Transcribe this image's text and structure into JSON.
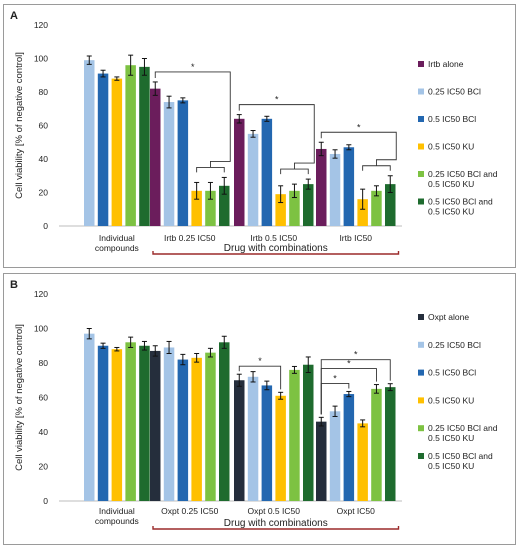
{
  "chart_data": [
    {
      "type": "bar",
      "panel_label": "A",
      "ylabel": "Cell viability [% of negative control]",
      "ylim": [
        0,
        120
      ],
      "yticks": [
        0,
        20,
        40,
        60,
        80,
        100,
        120
      ],
      "grid": false,
      "legend_position": "right",
      "bracket_label": "Drug with combinations",
      "groups": [
        {
          "label": "Individual\ncompounds",
          "lines": [
            "Individual",
            "compounds"
          ]
        },
        {
          "label": "Irtb 0.25 IC50",
          "lines": [
            "Irtb 0.25 IC50"
          ]
        },
        {
          "label": "Irtb 0.5 IC50",
          "lines": [
            "Irtb 0.5 IC50"
          ]
        },
        {
          "label": "Irtb IC50",
          "lines": [
            "Irtb IC50"
          ]
        }
      ],
      "series": [
        {
          "name": "Irtb alone",
          "color": "#6b1d5c",
          "values": [
            null,
            82,
            64,
            46
          ],
          "errors": [
            null,
            4,
            2.5,
            4
          ]
        },
        {
          "name": "0.25 IC50 BCl",
          "color": "#a4c4e6",
          "values": [
            99,
            74,
            55,
            43
          ],
          "errors": [
            2.5,
            3.5,
            2,
            2.5
          ]
        },
        {
          "name": "0.5 IC50 BCl",
          "color": "#2367b0",
          "values": [
            91,
            75,
            64,
            47
          ],
          "errors": [
            2,
            1.5,
            1.5,
            1.5
          ]
        },
        {
          "name": "0.5 IC50 KU",
          "color": "#ffc000",
          "values": [
            88,
            21,
            19,
            16
          ],
          "errors": [
            1,
            5,
            5,
            6
          ]
        },
        {
          "name": "0.25 IC50 BCl and 0.5 IC50 KU",
          "color": "#7dc242",
          "values": [
            96,
            21,
            21,
            21
          ],
          "errors": [
            6,
            5,
            4,
            3
          ]
        },
        {
          "name": "0.5 IC50 BCl and 0.5 IC50 KU",
          "color": "#1e6b2e",
          "values": [
            95,
            24,
            25,
            25
          ],
          "errors": [
            5,
            5,
            3,
            5
          ]
        }
      ],
      "legend_entries": [
        {
          "lines": [
            "Irtb alone"
          ],
          "color": "#6b1d5c"
        },
        {
          "lines": [
            "0.25 IC50 BCl"
          ],
          "color": "#a4c4e6"
        },
        {
          "lines": [
            "0.5 IC50 BCl"
          ],
          "color": "#2367b0"
        },
        {
          "lines": [
            "0.5 IC50 KU"
          ],
          "color": "#ffc000"
        },
        {
          "lines": [
            "0.25 IC50 BCl and",
            "0.5 IC50 KU"
          ],
          "color": "#7dc242"
        },
        {
          "lines": [
            "0.5 IC50 BCl and",
            "0.5 IC50 KU"
          ],
          "color": "#1e6b2e"
        }
      ],
      "annotations": [
        {
          "text": "*",
          "group": 1,
          "type": "bracket",
          "from_series": 0,
          "to_series": [
            3,
            5
          ]
        },
        {
          "text": "*",
          "group": 2,
          "type": "bracket",
          "from_series": 0,
          "to_series": [
            3,
            5
          ]
        },
        {
          "text": "*",
          "group": 3,
          "type": "bracket",
          "from_series": 0,
          "to_series": [
            3,
            5
          ]
        }
      ]
    },
    {
      "type": "bar",
      "panel_label": "B",
      "ylabel": "Cell viability [% of negative control]",
      "ylim": [
        0,
        120
      ],
      "yticks": [
        0,
        20,
        40,
        60,
        80,
        100,
        120
      ],
      "grid": false,
      "legend_position": "right",
      "bracket_label": "Drug with combinations",
      "groups": [
        {
          "label": "Individual\ncompounds",
          "lines": [
            "Individual",
            "compounds"
          ]
        },
        {
          "label": "Oxpt 0.25 IC50",
          "lines": [
            "Oxpt 0.25 IC50"
          ]
        },
        {
          "label": "Oxpt 0.5 IC50",
          "lines": [
            "Oxpt 0.5 IC50"
          ]
        },
        {
          "label": "Oxpt IC50",
          "lines": [
            "Oxpt IC50"
          ]
        }
      ],
      "series": [
        {
          "name": "Oxpt alone",
          "color": "#252e3c",
          "values": [
            null,
            87,
            70,
            46
          ],
          "errors": [
            null,
            3,
            3.5,
            2.5
          ]
        },
        {
          "name": "0.25 IC50 BCl",
          "color": "#a4c4e6",
          "values": [
            97,
            89,
            72,
            52
          ],
          "errors": [
            3,
            3.5,
            3,
            3
          ]
        },
        {
          "name": "0.5 IC50 BCl",
          "color": "#2367b0",
          "values": [
            90,
            82,
            67,
            62
          ],
          "errors": [
            1.5,
            3,
            2.5,
            1.5
          ]
        },
        {
          "name": "0.5 IC50 KU",
          "color": "#ffc000",
          "values": [
            88,
            83,
            61,
            45
          ],
          "errors": [
            1,
            2.5,
            2,
            2
          ]
        },
        {
          "name": "0.25 IC50 BCl and 0.5 IC50 KU",
          "color": "#7dc242",
          "values": [
            92,
            86,
            76,
            65
          ],
          "errors": [
            3,
            2.5,
            2,
            2.5
          ]
        },
        {
          "name": "0.5 IC50 BCl and 0.5 IC50 KU",
          "color": "#1e6b2e",
          "values": [
            90,
            92,
            79,
            66
          ],
          "errors": [
            2.5,
            3.5,
            4.5,
            2
          ]
        }
      ],
      "legend_entries": [
        {
          "lines": [
            "Oxpt alone"
          ],
          "color": "#252e3c"
        },
        {
          "lines": [
            "0.25 IC50 BCl"
          ],
          "color": "#a4c4e6"
        },
        {
          "lines": [
            "0.5 IC50 BCl"
          ],
          "color": "#2367b0"
        },
        {
          "lines": [
            "0.5 IC50 KU"
          ],
          "color": "#ffc000"
        },
        {
          "lines": [
            "0.25 IC50 BCl and",
            "0.5 IC50 KU"
          ],
          "color": "#7dc242"
        },
        {
          "lines": [
            "0.5 IC50 BCl and",
            "0.5 IC50 KU"
          ],
          "color": "#1e6b2e"
        }
      ],
      "annotations": [
        {
          "text": "*",
          "group": 2,
          "type": "bracket",
          "from_series": 0,
          "to_series": [
            3,
            3
          ]
        },
        {
          "text": "*",
          "group": 3,
          "type": "bracket",
          "from_series": 0,
          "to_series": [
            2,
            2
          ]
        },
        {
          "text": "*",
          "group": 3,
          "type": "bracket",
          "from_series": 0,
          "to_series": [
            4,
            4
          ]
        },
        {
          "text": "*",
          "group": 3,
          "type": "bracket",
          "from_series": 0,
          "to_series": [
            5,
            5
          ]
        }
      ]
    }
  ]
}
